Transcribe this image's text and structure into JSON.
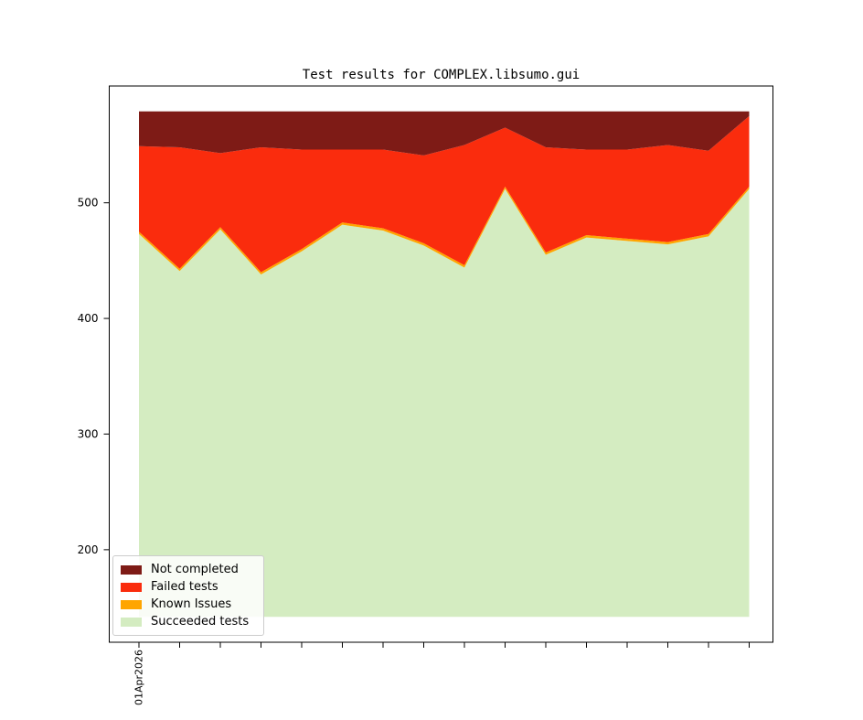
{
  "chart_data": {
    "type": "area",
    "stacked": true,
    "title": "Test results for COMPLEX.libsumo.gui",
    "ylim": [
      120,
      601
    ],
    "yticks": [
      200,
      300,
      400,
      500
    ],
    "grid": false,
    "x_num_points": 16,
    "x_first_tick_label": "01Apr2026",
    "area_baseline": 142,
    "series": [
      {
        "name": "Succeeded tests",
        "color": "#d4ecc1",
        "cumulative_top": [
          473,
          441,
          477,
          438,
          458,
          481,
          476,
          463,
          444,
          512,
          455,
          470,
          467,
          464,
          471,
          512
        ]
      },
      {
        "name": "Known Issues",
        "color": "#ffa500",
        "cumulative_top": [
          475,
          443,
          479,
          440,
          460,
          483,
          478,
          465,
          446,
          514,
          457,
          472,
          469,
          466,
          473,
          514
        ]
      },
      {
        "name": "Failed tests",
        "color": "#fa2c0d",
        "cumulative_top": [
          549,
          548,
          543,
          548,
          546,
          546,
          546,
          541,
          550,
          565,
          548,
          546,
          546,
          550,
          545,
          575
        ]
      },
      {
        "name": "Not completed",
        "color": "#7e1b16",
        "cumulative_top": [
          579,
          579,
          579,
          579,
          579,
          579,
          579,
          579,
          579,
          579,
          579,
          579,
          579,
          579,
          579,
          579
        ]
      }
    ],
    "legend": {
      "position": "lower-left",
      "entries": [
        {
          "label": "Not completed",
          "color": "#7e1b16"
        },
        {
          "label": "Failed tests",
          "color": "#fa2c0d"
        },
        {
          "label": "Known Issues",
          "color": "#ffa500"
        },
        {
          "label": "Succeeded tests",
          "color": "#d4ecc1"
        }
      ]
    }
  }
}
